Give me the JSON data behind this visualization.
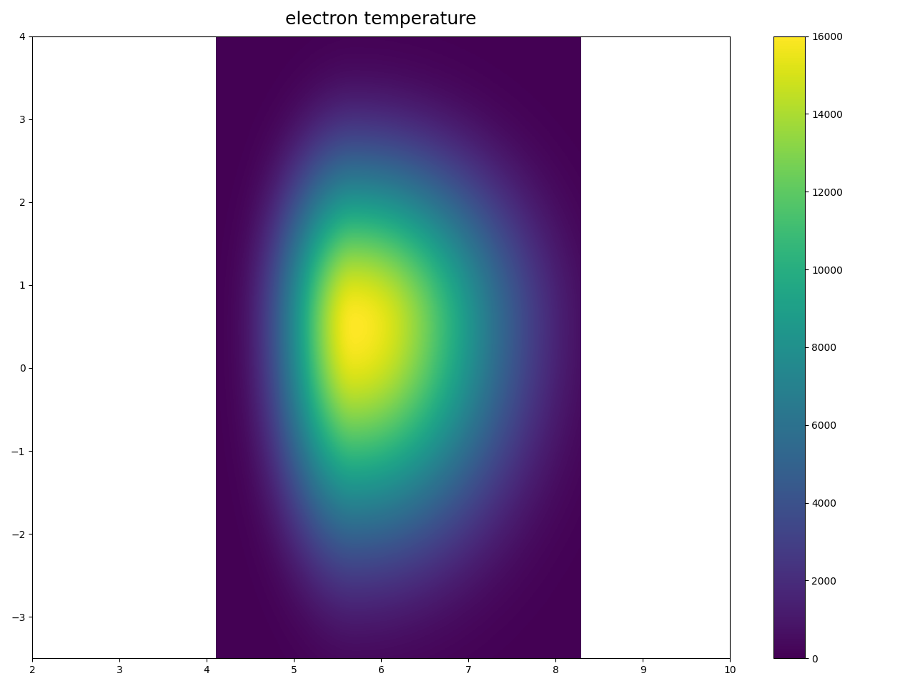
{
  "title": "electron temperature",
  "xlim": [
    2,
    10
  ],
  "ylim": [
    -3.5,
    4
  ],
  "cmap": "viridis",
  "vmin": 0,
  "vmax": 16000,
  "colorbar_ticks": [
    0,
    2000,
    4000,
    6000,
    8000,
    10000,
    12000,
    14000,
    16000
  ],
  "x_center": 5.7,
  "y_center": 0.5,
  "peak_value": 16000,
  "band_xmin": 4.1,
  "band_xmax": 8.3,
  "figsize": [
    12.8,
    9.6
  ],
  "dpi": 100
}
